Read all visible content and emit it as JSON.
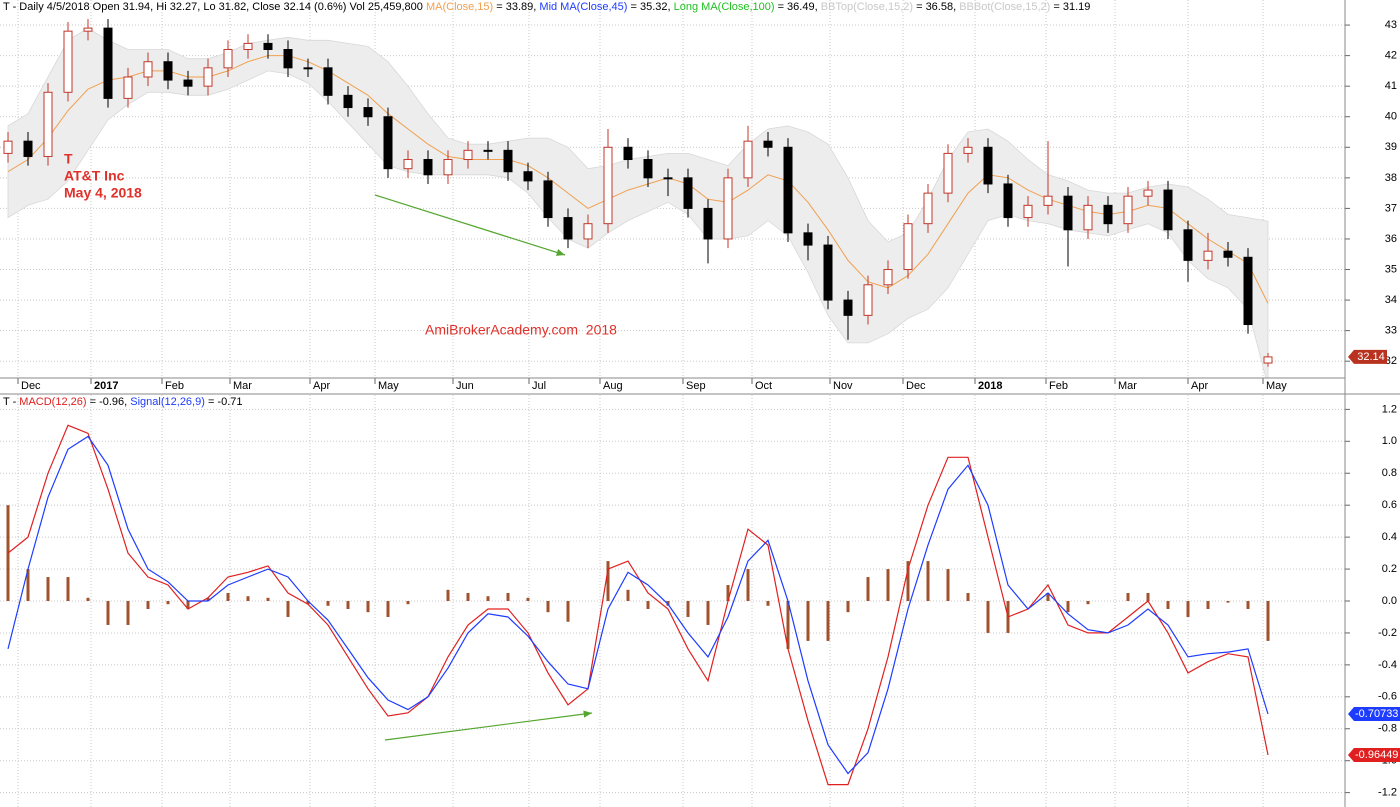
{
  "chart_data": [
    {
      "type": "candlestick",
      "header": [
        {
          "text": "T - Daily 4/5/2018 Open 31.94, Hi 32.27, Lo 31.82, Close 32.14 (0.6%) Vol 25,459,800 ",
          "color": "#000000"
        },
        {
          "text": "MA(Close,15)",
          "color": "#f0a050"
        },
        {
          "text": " = 33.89, ",
          "color": "#000000"
        },
        {
          "text": "Mid MA(Close,45)",
          "color": "#1e3cff"
        },
        {
          "text": " = 35.32, ",
          "color": "#000000"
        },
        {
          "text": "Long MA(Close,100)",
          "color": "#22c022"
        },
        {
          "text": " = 36.49, ",
          "color": "#000000"
        },
        {
          "text": "BBTop(Close,15,2)",
          "color": "#c8c8c8"
        },
        {
          "text": " = 36.58, ",
          "color": "#000000"
        },
        {
          "text": "BBBot(Close,15,2)",
          "color": "#c8c8c8"
        },
        {
          "text": " = 31.19",
          "color": "#000000"
        }
      ],
      "annotations": [
        "T",
        "AT&T Inc",
        "May 4, 2018"
      ],
      "watermark": "AmiBrokerAcademy.com  2018",
      "up_color": "#c0392b",
      "down_color": "#000000",
      "candles": [
        [
          38.8,
          39.5,
          38.5,
          39.2
        ],
        [
          39.2,
          39.5,
          38.4,
          38.7
        ],
        [
          38.7,
          41.1,
          38.4,
          40.8
        ],
        [
          40.8,
          43.1,
          40.5,
          42.8
        ],
        [
          42.8,
          43.2,
          42.5,
          42.9
        ],
        [
          42.9,
          43.2,
          40.3,
          40.6
        ],
        [
          40.6,
          41.6,
          40.3,
          41.3
        ],
        [
          41.3,
          42.1,
          41.0,
          41.8
        ],
        [
          41.8,
          42.1,
          40.9,
          41.2
        ],
        [
          41.2,
          41.5,
          40.7,
          41.0
        ],
        [
          41.0,
          41.9,
          40.7,
          41.6
        ],
        [
          41.6,
          42.5,
          41.3,
          42.2
        ],
        [
          42.2,
          42.7,
          41.9,
          42.4
        ],
        [
          42.4,
          42.7,
          41.9,
          42.2
        ],
        [
          42.2,
          42.5,
          41.3,
          41.6
        ],
        [
          41.6,
          41.9,
          41.3,
          41.6
        ],
        [
          41.6,
          41.9,
          40.4,
          40.7
        ],
        [
          40.7,
          41.0,
          40.0,
          40.3
        ],
        [
          40.3,
          40.6,
          39.7,
          40.0
        ],
        [
          40.0,
          40.3,
          38.0,
          38.3
        ],
        [
          38.3,
          38.9,
          38.0,
          38.6
        ],
        [
          38.6,
          38.9,
          37.8,
          38.1
        ],
        [
          38.1,
          38.9,
          37.8,
          38.6
        ],
        [
          38.6,
          39.2,
          38.3,
          38.9
        ],
        [
          38.9,
          39.2,
          38.6,
          38.9
        ],
        [
          38.9,
          39.2,
          37.9,
          38.2
        ],
        [
          38.2,
          38.5,
          37.6,
          37.9
        ],
        [
          37.9,
          38.2,
          36.4,
          36.7
        ],
        [
          36.7,
          37.0,
          35.7,
          36.0
        ],
        [
          36.0,
          36.8,
          35.7,
          36.5
        ],
        [
          36.5,
          39.6,
          36.2,
          39.0
        ],
        [
          39.0,
          39.3,
          38.3,
          38.6
        ],
        [
          38.6,
          38.9,
          37.7,
          38.0
        ],
        [
          38.0,
          38.3,
          37.4,
          38.0
        ],
        [
          38.0,
          38.3,
          36.7,
          37.0
        ],
        [
          37.0,
          37.3,
          35.2,
          36.0
        ],
        [
          36.0,
          38.3,
          35.7,
          38.0
        ],
        [
          38.0,
          39.7,
          37.7,
          39.2
        ],
        [
          39.2,
          39.5,
          38.7,
          39.0
        ],
        [
          39.0,
          39.3,
          35.9,
          36.2
        ],
        [
          36.2,
          36.5,
          35.3,
          35.8
        ],
        [
          35.8,
          36.1,
          33.7,
          34.0
        ],
        [
          34.0,
          34.3,
          32.7,
          33.5
        ],
        [
          33.5,
          34.8,
          33.2,
          34.5
        ],
        [
          34.5,
          35.3,
          34.2,
          35.0
        ],
        [
          35.0,
          36.8,
          34.7,
          36.5
        ],
        [
          36.5,
          37.8,
          36.2,
          37.5
        ],
        [
          37.5,
          39.1,
          37.2,
          38.8
        ],
        [
          38.8,
          39.3,
          38.5,
          39.0
        ],
        [
          39.0,
          39.3,
          37.5,
          37.8
        ],
        [
          37.8,
          38.1,
          36.4,
          36.7
        ],
        [
          36.7,
          37.4,
          36.4,
          37.1
        ],
        [
          37.1,
          39.2,
          36.8,
          37.4
        ],
        [
          37.4,
          37.7,
          35.1,
          36.3
        ],
        [
          36.3,
          37.4,
          36.0,
          37.1
        ],
        [
          37.1,
          37.4,
          36.2,
          36.5
        ],
        [
          36.5,
          37.7,
          36.2,
          37.4
        ],
        [
          37.4,
          37.9,
          37.1,
          37.6
        ],
        [
          37.6,
          37.9,
          36.0,
          36.3
        ],
        [
          36.3,
          36.6,
          34.6,
          35.3
        ],
        [
          35.3,
          36.2,
          35.0,
          35.6
        ],
        [
          35.6,
          35.9,
          35.1,
          35.4
        ],
        [
          35.4,
          35.7,
          32.9,
          33.2
        ],
        [
          31.94,
          32.27,
          31.82,
          32.14
        ]
      ],
      "ma": {
        "color": "#f0a050",
        "values": [
          38.2,
          38.6,
          39.3,
          40.2,
          40.9,
          41.2,
          41.3,
          41.5,
          41.5,
          41.3,
          41.3,
          41.5,
          41.8,
          42.0,
          42.0,
          41.8,
          41.5,
          41.1,
          40.7,
          40.1,
          39.6,
          39.1,
          38.7,
          38.6,
          38.6,
          38.6,
          38.4,
          38.0,
          37.5,
          37.0,
          37.3,
          37.6,
          37.8,
          38.0,
          37.8,
          37.3,
          37.2,
          37.6,
          38.1,
          37.9,
          37.2,
          36.3,
          35.3,
          34.6,
          34.4,
          34.8,
          35.5,
          36.5,
          37.5,
          38.1,
          38.0,
          37.6,
          37.3,
          37.1,
          36.9,
          36.8,
          36.9,
          37.1,
          37.0,
          36.5,
          36.0,
          35.6,
          35.2,
          33.89
        ]
      },
      "bollinger": {
        "color": "#ededed",
        "top": [
          39.7,
          40.1,
          41.3,
          42.5,
          42.9,
          42.5,
          42.2,
          42.2,
          42.2,
          41.9,
          41.9,
          42.1,
          42.4,
          42.5,
          42.6,
          42.5,
          42.5,
          42.4,
          42.3,
          41.8,
          41.0,
          40.1,
          39.3,
          39.1,
          39.1,
          39.2,
          39.3,
          39.3,
          39.0,
          38.3,
          38.4,
          38.6,
          38.7,
          38.8,
          38.8,
          38.6,
          38.4,
          39.1,
          39.6,
          39.7,
          39.5,
          39.1,
          38.0,
          36.6,
          35.9,
          36.2,
          37.3,
          38.6,
          39.5,
          39.6,
          39.2,
          38.6,
          38.1,
          37.9,
          37.6,
          37.5,
          37.5,
          37.7,
          37.8,
          37.7,
          37.3,
          36.8,
          36.7,
          36.58
        ],
        "bottom": [
          36.7,
          37.1,
          37.3,
          37.9,
          38.9,
          39.9,
          40.4,
          40.8,
          40.8,
          40.7,
          40.7,
          40.9,
          41.2,
          41.5,
          41.4,
          41.1,
          40.5,
          39.8,
          39.1,
          38.4,
          38.2,
          38.1,
          38.1,
          38.1,
          38.1,
          38.0,
          37.5,
          36.7,
          36.0,
          35.7,
          36.2,
          36.6,
          36.9,
          37.2,
          36.8,
          36.0,
          36.0,
          36.1,
          36.6,
          36.1,
          34.9,
          33.5,
          32.6,
          32.6,
          32.9,
          33.4,
          33.7,
          34.4,
          35.5,
          36.6,
          36.8,
          36.6,
          36.5,
          36.3,
          36.2,
          36.1,
          36.3,
          36.5,
          36.2,
          35.3,
          34.7,
          34.4,
          33.7,
          31.19
        ]
      },
      "xlim": [
        -0.4,
        66.85
      ],
      "xticks": [
        {
          "value": 0.5,
          "label": "Dec"
        },
        {
          "value": 4.15,
          "label": "2017"
        },
        {
          "value": 7.7,
          "label": "Feb"
        },
        {
          "value": 11.1,
          "label": "Mar"
        },
        {
          "value": 15.1,
          "label": "Apr"
        },
        {
          "value": 18.35,
          "label": "May"
        },
        {
          "value": 22.25,
          "label": "Jun"
        },
        {
          "value": 26.05,
          "label": "Jul"
        },
        {
          "value": 29.6,
          "label": "Aug"
        },
        {
          "value": 33.75,
          "label": "Sep"
        },
        {
          "value": 37.2,
          "label": "Oct"
        },
        {
          "value": 41.1,
          "label": "Nov"
        },
        {
          "value": 44.75,
          "label": "Dec"
        },
        {
          "value": 48.35,
          "label": "2018"
        },
        {
          "value": 51.9,
          "label": "Feb"
        },
        {
          "value": 55.35,
          "label": "Mar"
        },
        {
          "value": 59.0,
          "label": "Apr"
        },
        {
          "value": 62.75,
          "label": "May"
        }
      ],
      "ylim": [
        31.45,
        43.82
      ],
      "yticks": [
        32,
        33,
        34,
        35,
        36,
        37,
        38,
        39,
        40,
        41,
        42,
        43
      ],
      "grid": true
    },
    {
      "type": "macd",
      "header": [
        {
          "text": "T - ",
          "color": "#000000"
        },
        {
          "text": "MACD(12,26)",
          "color": "#e02020"
        },
        {
          "text": " = -0.96, ",
          "color": "#000000"
        },
        {
          "text": "Signal(12,26,9)",
          "color": "#1e3cff"
        },
        {
          "text": " = -0.71",
          "color": "#000000"
        }
      ],
      "series": [
        {
          "name": "MACD(12,26)",
          "color": "#e02020",
          "values": [
            0.3,
            0.4,
            0.8,
            1.1,
            1.05,
            0.7,
            0.3,
            0.15,
            0.1,
            -0.05,
            0.02,
            0.15,
            0.18,
            0.22,
            0.05,
            -0.02,
            -0.15,
            -0.35,
            -0.55,
            -0.72,
            -0.7,
            -0.6,
            -0.35,
            -0.15,
            -0.05,
            -0.05,
            -0.2,
            -0.45,
            -0.65,
            -0.55,
            0.2,
            0.25,
            0.05,
            -0.05,
            -0.3,
            -0.5,
            0.0,
            0.45,
            0.35,
            -0.3,
            -0.75,
            -1.15,
            -1.15,
            -0.8,
            -0.35,
            0.2,
            0.6,
            0.9,
            0.9,
            0.4,
            -0.1,
            -0.05,
            0.1,
            -0.15,
            -0.2,
            -0.2,
            -0.1,
            0.0,
            -0.2,
            -0.45,
            -0.38,
            -0.33,
            -0.35,
            -0.96449
          ]
        },
        {
          "name": "Signal(12,26,9)",
          "color": "#1e3cff",
          "values": [
            -0.3,
            0.2,
            0.65,
            0.95,
            1.03,
            0.85,
            0.45,
            0.2,
            0.12,
            0.0,
            0.0,
            0.1,
            0.15,
            0.2,
            0.15,
            0.0,
            -0.12,
            -0.3,
            -0.48,
            -0.62,
            -0.68,
            -0.6,
            -0.42,
            -0.2,
            -0.08,
            -0.1,
            -0.22,
            -0.38,
            -0.52,
            -0.55,
            -0.05,
            0.18,
            0.1,
            -0.02,
            -0.2,
            -0.35,
            -0.1,
            0.25,
            0.38,
            0.0,
            -0.5,
            -0.9,
            -1.08,
            -0.95,
            -0.55,
            -0.05,
            0.35,
            0.7,
            0.85,
            0.6,
            0.1,
            -0.05,
            0.05,
            -0.08,
            -0.18,
            -0.2,
            -0.15,
            -0.05,
            -0.15,
            -0.35,
            -0.33,
            -0.32,
            -0.3,
            -0.70733
          ]
        }
      ],
      "histogram": {
        "color": "#a0522d",
        "values": [
          0.6,
          0.2,
          0.15,
          0.15,
          0.02,
          -0.15,
          -0.15,
          -0.05,
          -0.02,
          -0.05,
          0.02,
          0.05,
          0.03,
          0.02,
          -0.1,
          -0.02,
          -0.03,
          -0.05,
          -0.07,
          -0.1,
          -0.02,
          0.0,
          0.07,
          0.05,
          0.03,
          0.05,
          0.02,
          -0.07,
          -0.13,
          0.0,
          0.25,
          0.07,
          -0.05,
          -0.03,
          -0.1,
          -0.15,
          0.1,
          0.2,
          -0.03,
          -0.3,
          -0.25,
          -0.25,
          -0.07,
          0.15,
          0.2,
          0.25,
          0.25,
          0.2,
          0.05,
          -0.2,
          -0.2,
          0.0,
          0.05,
          -0.07,
          -0.02,
          0.0,
          0.05,
          0.05,
          -0.05,
          -0.1,
          -0.05,
          -0.01,
          -0.05,
          -0.25
        ]
      },
      "ylim": [
        -1.29,
        1.29
      ],
      "yticks": [
        -1.2,
        {
          "value": -1.0,
          "label": "-1.0"
        },
        -0.8,
        -0.6,
        -0.4,
        -0.2,
        {
          "value": 0,
          "label": "0.0"
        },
        0.2,
        0.4,
        0.6,
        0.8,
        {
          "value": 1.0,
          "label": "1.0"
        },
        1.2
      ],
      "grid": true
    }
  ]
}
